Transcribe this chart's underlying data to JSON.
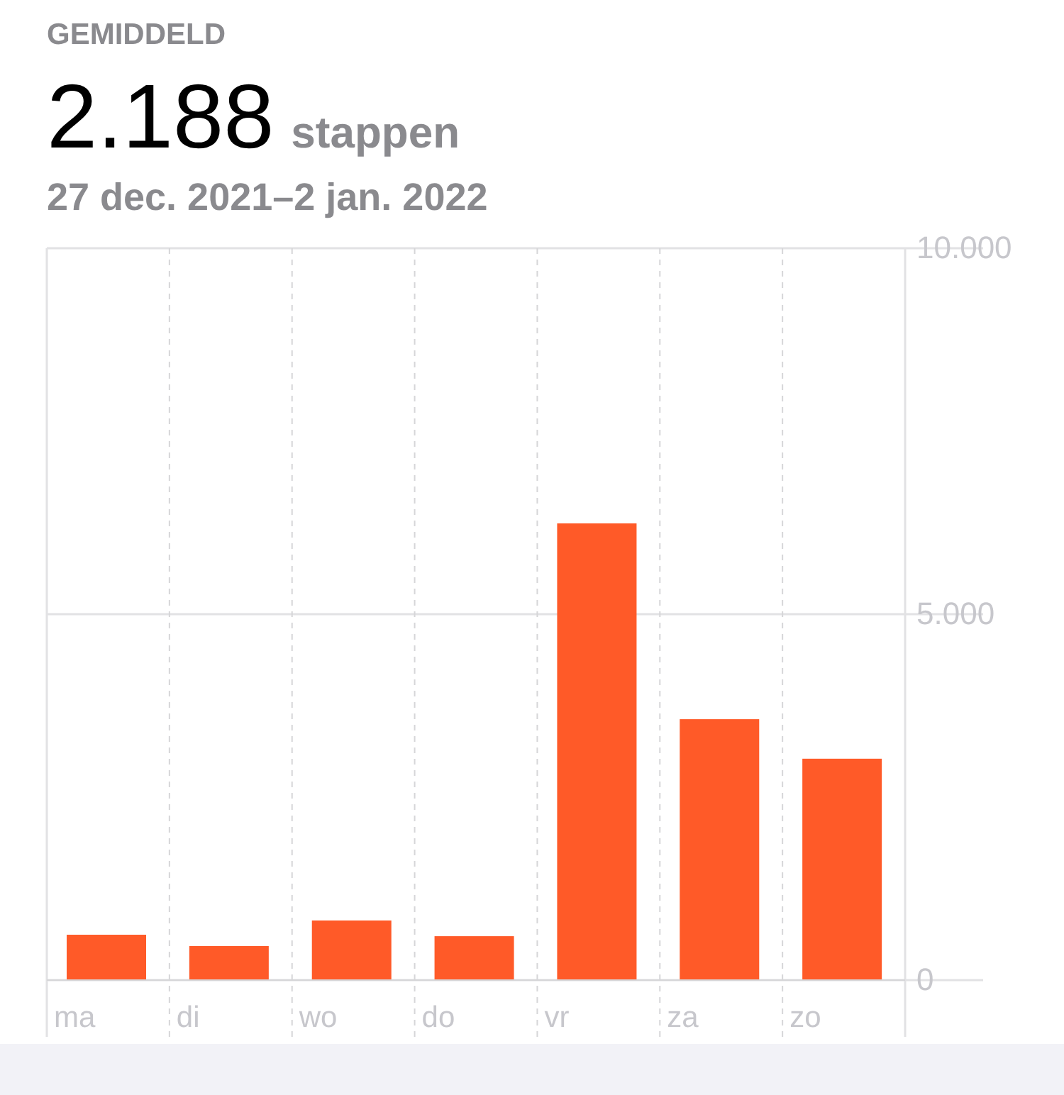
{
  "chart_data": {
    "type": "bar",
    "title": "GEMIDDELD",
    "subtitle": "27 dec. 2021–2 jan. 2022",
    "annotations": [
      "2.188",
      "stappen"
    ],
    "categories": [
      "ma",
      "di",
      "wo",
      "do",
      "vr",
      "za",
      "zo"
    ],
    "values": [
      620,
      465,
      815,
      600,
      6240,
      3565,
      3025
    ],
    "color": "#ff5a28",
    "ylim": [
      0,
      10000
    ],
    "yticks": [
      {
        "value": 0,
        "label": "0"
      },
      {
        "value": 5000,
        "label": "5.000"
      },
      {
        "value": 10000,
        "label": "10.000"
      }
    ],
    "grid": true
  }
}
